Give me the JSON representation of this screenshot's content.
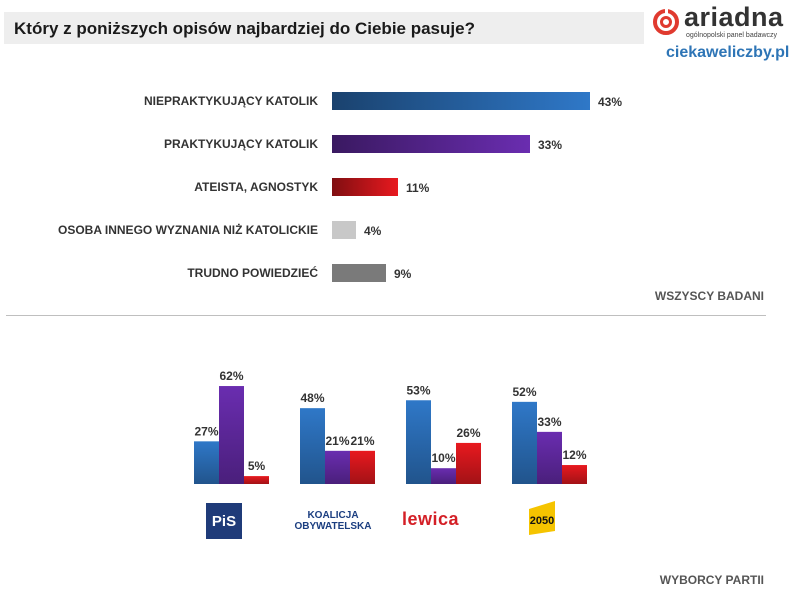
{
  "title": "Który z poniższych opisów najbardziej do Ciebie pasuje?",
  "brand": {
    "name": "ariadna",
    "tagline": "ogólnopolski panel badawczy",
    "site": "ciekaweliczby.pl"
  },
  "colors": {
    "blue": "#2f78c8",
    "purple": "#6a2db0",
    "red": "#e8191f",
    "light_gray": "#c8c8c8",
    "dark_gray": "#7a7a7a"
  },
  "chart_data": [
    {
      "type": "bar",
      "orientation": "horizontal",
      "scope_label": "WSZYSCY BADANI",
      "categories": [
        "NIEPRAKTYKUJĄCY KATOLIK",
        "PRAKTYKUJĄCY KATOLIK",
        "ATEISTA, AGNOSTYK",
        "OSOBA INNEGO WYZNANIA NIŻ KATOLICKIE",
        "TRUDNO POWIEDZIEĆ"
      ],
      "values": [
        43,
        33,
        11,
        4,
        9
      ],
      "value_labels": [
        "43%",
        "33%",
        "11%",
        "4%",
        "9%"
      ],
      "bar_colors": [
        "#2f78c8",
        "#6a2db0",
        "#e8191f",
        "#c8c8c8",
        "#7a7a7a"
      ],
      "unit": "%",
      "grid": false
    },
    {
      "type": "bar",
      "orientation": "vertical",
      "scope_label": "WYBORCY PARTII",
      "groups": [
        "PiS",
        "KOALICJA OBYWATELSKA",
        "Lewica",
        "2050"
      ],
      "series": [
        {
          "color": "#2f78c8",
          "values": [
            27,
            48,
            53,
            52
          ],
          "value_labels": [
            "27%",
            "48%",
            "53%",
            "52%"
          ]
        },
        {
          "color": "#6a2db0",
          "values": [
            62,
            21,
            10,
            33
          ],
          "value_labels": [
            "62%",
            "21%",
            "10%",
            "33%"
          ]
        },
        {
          "color": "#e8191f",
          "values": [
            5,
            21,
            26,
            12
          ],
          "value_labels": [
            "5%",
            "21%",
            "26%",
            "12%"
          ]
        }
      ],
      "unit": "%",
      "grid": false
    }
  ],
  "party_logos": {
    "pis": "PiS",
    "ko_line1": "KOALICJA",
    "ko_line2": "OBYWATELSKA",
    "lewica": "lewica",
    "p2050": "2050"
  }
}
